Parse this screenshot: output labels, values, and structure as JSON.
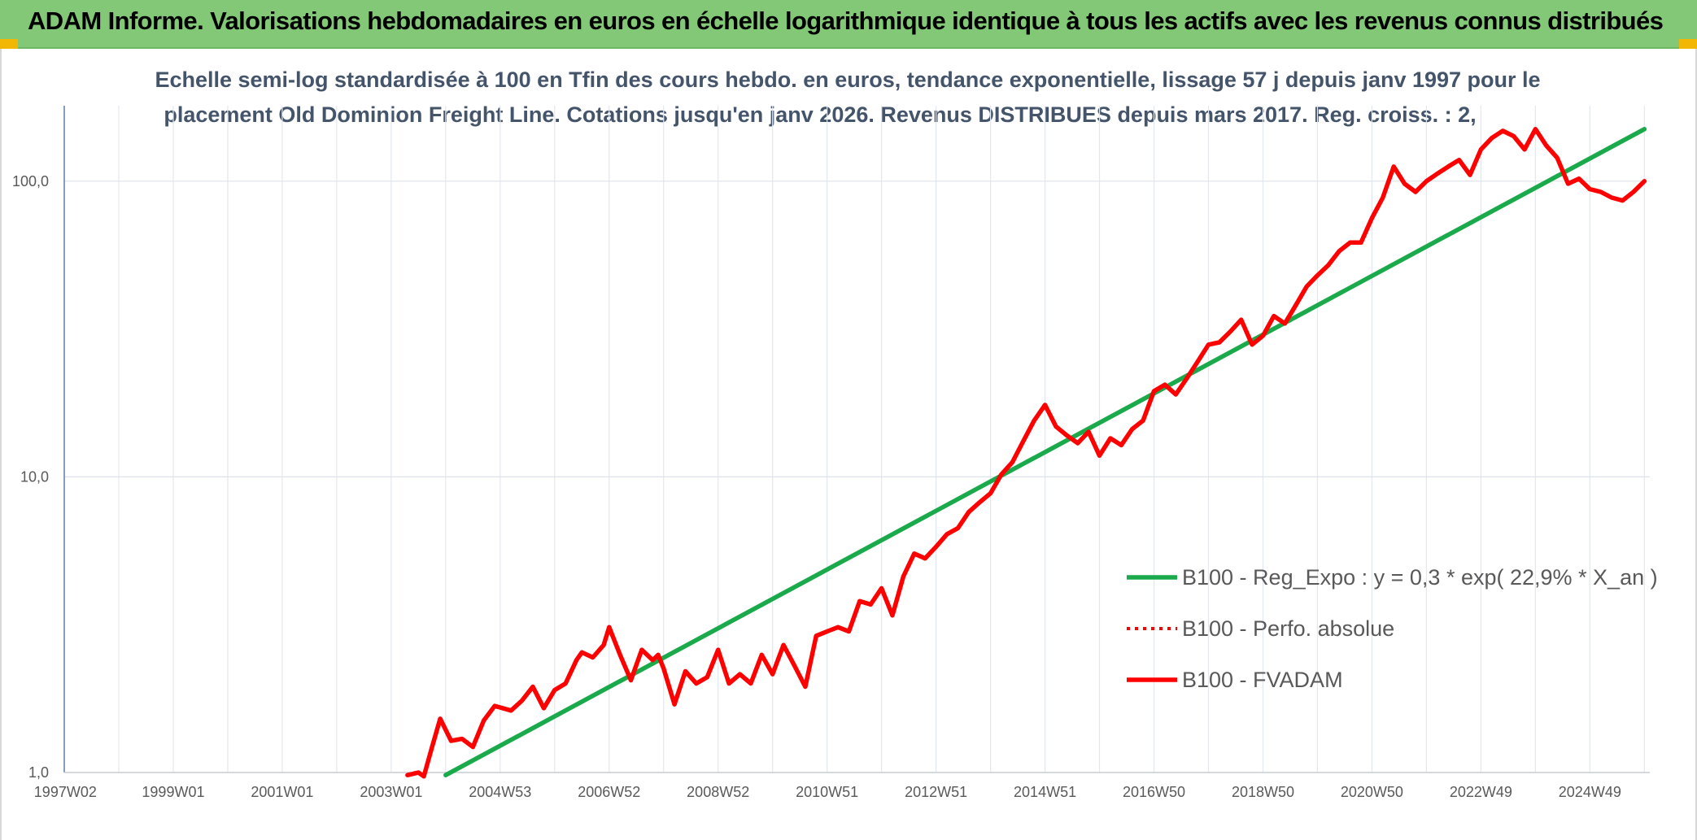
{
  "header": {
    "title": "ADAM Informe. Valorisations hebdomadaires en euros en échelle logarithmique identique à tous les actifs avec les revenus connus distribués",
    "background": "#82c876",
    "corner_color": "#f2b705"
  },
  "chart_data": {
    "type": "line",
    "title": "",
    "subtitle_lines": [
      "Echelle semi-log standardisée à 100 en Tfin des cours hebdo. en euros, tendance exponentielle, lissage 57 j depuis janv 1997 pour le",
      "placement Old Dominion Freight Line. Cotations jusqu'en janv 2026. Revenus DISTRIBUES depuis mars 2017. Reg. croiss. : 2,"
    ],
    "xlabel": "",
    "ylabel": "",
    "y_scale": "log",
    "ylim": [
      1,
      180
    ],
    "y_ticks": [
      {
        "value": 1,
        "label": "1,0"
      },
      {
        "value": 10,
        "label": "10,0"
      },
      {
        "value": 100,
        "label": "100,0"
      }
    ],
    "x_range": [
      1997.0,
      2026.1
    ],
    "x_ticks": [
      {
        "value": 1997.02,
        "label": "1997W02"
      },
      {
        "value": 1999.0,
        "label": "1999W01"
      },
      {
        "value": 2001.0,
        "label": "2001W01"
      },
      {
        "value": 2003.0,
        "label": "2003W01"
      },
      {
        "value": 2005.0,
        "label": "2004W53"
      },
      {
        "value": 2007.0,
        "label": "2006W52"
      },
      {
        "value": 2009.0,
        "label": "2008W52"
      },
      {
        "value": 2011.0,
        "label": "2010W51"
      },
      {
        "value": 2013.0,
        "label": "2012W51"
      },
      {
        "value": 2015.0,
        "label": "2014W51"
      },
      {
        "value": 2017.0,
        "label": "2016W50"
      },
      {
        "value": 2019.0,
        "label": "2018W50"
      },
      {
        "value": 2021.0,
        "label": "2020W50"
      },
      {
        "value": 2023.0,
        "label": "2022W49"
      },
      {
        "value": 2025.0,
        "label": "2024W49"
      }
    ],
    "grid": {
      "vertical": true,
      "horizontal": true
    },
    "legend_position": "right",
    "series": [
      {
        "name": "B100 - Reg_Expo : y = 0,3 * exp( 22,9% *  X_an )",
        "color": "#1aaa4b",
        "style": "solid",
        "x": [
          2004.0,
          2026.0
        ],
        "y": [
          0.98,
          150
        ]
      },
      {
        "name": "B100 - Perfo. absolue",
        "color": "#ff0000",
        "style": "dotted",
        "x": [],
        "y": []
      },
      {
        "name": "B100 - FVADAM",
        "color": "#ff0000",
        "style": "solid",
        "x": [
          2003.3,
          2003.5,
          2003.6,
          2003.75,
          2003.9,
          2004.1,
          2004.3,
          2004.5,
          2004.7,
          2004.9,
          2005.2,
          2005.4,
          2005.6,
          2005.8,
          2006.0,
          2006.2,
          2006.4,
          2006.5,
          2006.7,
          2006.9,
          2007.0,
          2007.2,
          2007.4,
          2007.6,
          2007.8,
          2007.9,
          2008.0,
          2008.2,
          2008.4,
          2008.6,
          2008.8,
          2009.0,
          2009.2,
          2009.4,
          2009.6,
          2009.8,
          2010.0,
          2010.2,
          2010.4,
          2010.6,
          2010.8,
          2011.0,
          2011.2,
          2011.4,
          2011.6,
          2011.8,
          2012.0,
          2012.2,
          2012.4,
          2012.6,
          2012.8,
          2013.0,
          2013.2,
          2013.4,
          2013.6,
          2013.8,
          2014.0,
          2014.2,
          2014.4,
          2014.6,
          2014.8,
          2015.0,
          2015.2,
          2015.4,
          2015.6,
          2015.8,
          2016.0,
          2016.2,
          2016.4,
          2016.6,
          2016.8,
          2017.0,
          2017.2,
          2017.4,
          2017.6,
          2017.8,
          2018.0,
          2018.2,
          2018.4,
          2018.6,
          2018.8,
          2019.0,
          2019.2,
          2019.4,
          2019.6,
          2019.8,
          2020.0,
          2020.2,
          2020.4,
          2020.6,
          2020.8,
          2021.0,
          2021.2,
          2021.4,
          2021.6,
          2021.8,
          2022.0,
          2022.2,
          2022.4,
          2022.6,
          2022.8,
          2023.0,
          2023.2,
          2023.4,
          2023.6,
          2023.8,
          2024.0,
          2024.2,
          2024.4,
          2024.6,
          2024.8,
          2025.0,
          2025.2,
          2025.4,
          2025.6,
          2025.8,
          2026.0
        ],
        "y": [
          0.98,
          1.0,
          0.97,
          1.22,
          1.52,
          1.28,
          1.3,
          1.22,
          1.5,
          1.68,
          1.62,
          1.75,
          1.95,
          1.65,
          1.9,
          2.0,
          2.4,
          2.55,
          2.45,
          2.7,
          3.1,
          2.5,
          2.05,
          2.6,
          2.4,
          2.5,
          2.25,
          1.7,
          2.2,
          2.0,
          2.1,
          2.6,
          2.0,
          2.15,
          2.0,
          2.5,
          2.15,
          2.7,
          2.3,
          1.95,
          2.9,
          3.0,
          3.1,
          3.0,
          3.8,
          3.7,
          4.2,
          3.4,
          4.6,
          5.5,
          5.3,
          5.8,
          6.4,
          6.7,
          7.6,
          8.2,
          8.8,
          10.2,
          11.2,
          13.2,
          15.5,
          17.5,
          14.8,
          13.8,
          13.0,
          14.2,
          11.8,
          13.5,
          12.8,
          14.5,
          15.5,
          19.5,
          20.5,
          19.0,
          21.5,
          24.5,
          28.0,
          28.5,
          31.0,
          34.0,
          28.0,
          30.0,
          35.0,
          33.0,
          38.0,
          44.0,
          48.0,
          52.0,
          58.0,
          62.0,
          62.0,
          75.0,
          88.0,
          112.0,
          98.0,
          92.0,
          100.0,
          106.0,
          112.0,
          118.0,
          105.0,
          128.0,
          140.0,
          148.0,
          142.0,
          128.0,
          150.0,
          132.0,
          120.0,
          98.0,
          102.0,
          94.0,
          92.0,
          88.0,
          86.0,
          92.0,
          100.0
        ]
      }
    ]
  }
}
